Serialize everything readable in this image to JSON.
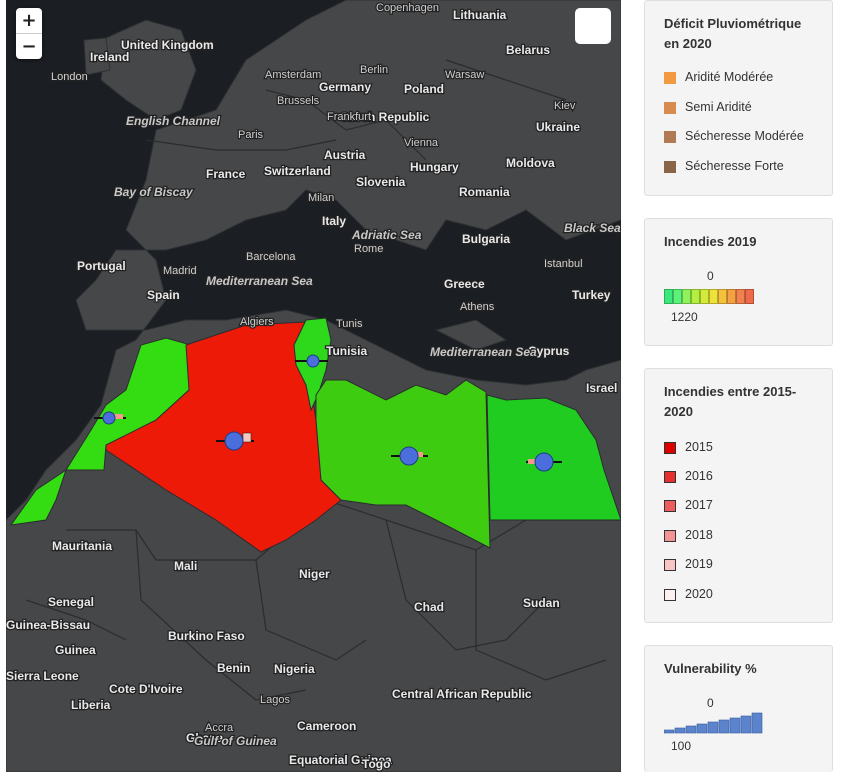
{
  "controls": {
    "zoom_in": "+",
    "zoom_out": "−"
  },
  "map_labels": {
    "countries": [
      "Lithuania",
      "Belarus",
      "United Kingdom",
      "Ireland",
      "Germany",
      "Poland",
      "Czech Republic",
      "Ukraine",
      "Moldova",
      "France",
      "Switzerland",
      "Austria",
      "Hungary",
      "Slovenia",
      "Romania",
      "Italy",
      "Bulgaria",
      "Portugal",
      "Spain",
      "Greece",
      "Turkey",
      "Cyprus",
      "Israel",
      "Tunisia",
      "Mauritania",
      "Mali",
      "Niger",
      "Chad",
      "Sudan",
      "Senegal",
      "Guinea-Bissau",
      "Guinea",
      "Burkino Faso",
      "Benin",
      "Nigeria",
      "Sierra Leone",
      "Cote D'Ivoire",
      "Liberia",
      "Ghana",
      "Cameroon",
      "Central African Republic",
      "Equatorial Guinea",
      "Togo"
    ],
    "cities": [
      "Copenhagen",
      "London",
      "Berlin",
      "Warsaw",
      "Amsterdam",
      "Brussels",
      "Frankfurt",
      "Kiev",
      "Paris",
      "Vienna",
      "Milan",
      "Barcelona",
      "Madrid",
      "Rome",
      "Istanbul",
      "Athens",
      "Algiers",
      "Tunis",
      "Accra",
      "Lagos"
    ],
    "seas": [
      "English Channel",
      "Bay of Biscay",
      "Adriatic Sea",
      "Black Sea",
      "Mediterranean Sea",
      "Mediterranean Sea",
      "Gulf of Guinea"
    ]
  },
  "regions": [
    {
      "name": "Morocco",
      "color": "#33dd11"
    },
    {
      "name": "Algeria",
      "color": "#ee1a08"
    },
    {
      "name": "Tunisia",
      "color": "#2ed81a"
    },
    {
      "name": "Libya",
      "color": "#3dcc10"
    },
    {
      "name": "Egypt",
      "color": "#1fcc1f"
    }
  ],
  "legends": {
    "deficit": {
      "title_line1": "Déficit Pluviométrique",
      "title_line2": "en 2020",
      "items": [
        {
          "label": "Aridité Modérée",
          "color": "#f29a41"
        },
        {
          "label": "Semi Aridité",
          "color": "#d88b4e"
        },
        {
          "label": "Sécheresse Modérée",
          "color": "#b07a52"
        },
        {
          "label": "Sécheresse Forte",
          "color": "#8a6446"
        }
      ]
    },
    "fires2019": {
      "title": "Incendies 2019",
      "min_label": "0",
      "max_label": "1220",
      "ramp": [
        "#3de87a",
        "#5cf27a",
        "#8ef25a",
        "#b4ee3f",
        "#d2ea3a",
        "#eee13a",
        "#f4c23a",
        "#f6a042",
        "#f2824c",
        "#ee6a4a"
      ]
    },
    "fires_period": {
      "title_line1": "Incendies entre 2015-",
      "title_line2": "2020",
      "items": [
        {
          "label": "2015",
          "color": "#dd0000"
        },
        {
          "label": "2016",
          "color": "#e52e2e"
        },
        {
          "label": "2017",
          "color": "#ee5d5d"
        },
        {
          "label": "2018",
          "color": "#f39494"
        },
        {
          "label": "2019",
          "color": "#f8c4c4"
        },
        {
          "label": "2020",
          "color": "#fdf0f0"
        }
      ]
    },
    "vulnerability": {
      "title": "Vulnerability %",
      "min_label": "0",
      "max_label": "100",
      "bar_levels": [
        0.15,
        0.25,
        0.35,
        0.45,
        0.55,
        0.65,
        0.75,
        0.85,
        1.0
      ],
      "bar_color": "#5b84cc"
    }
  }
}
